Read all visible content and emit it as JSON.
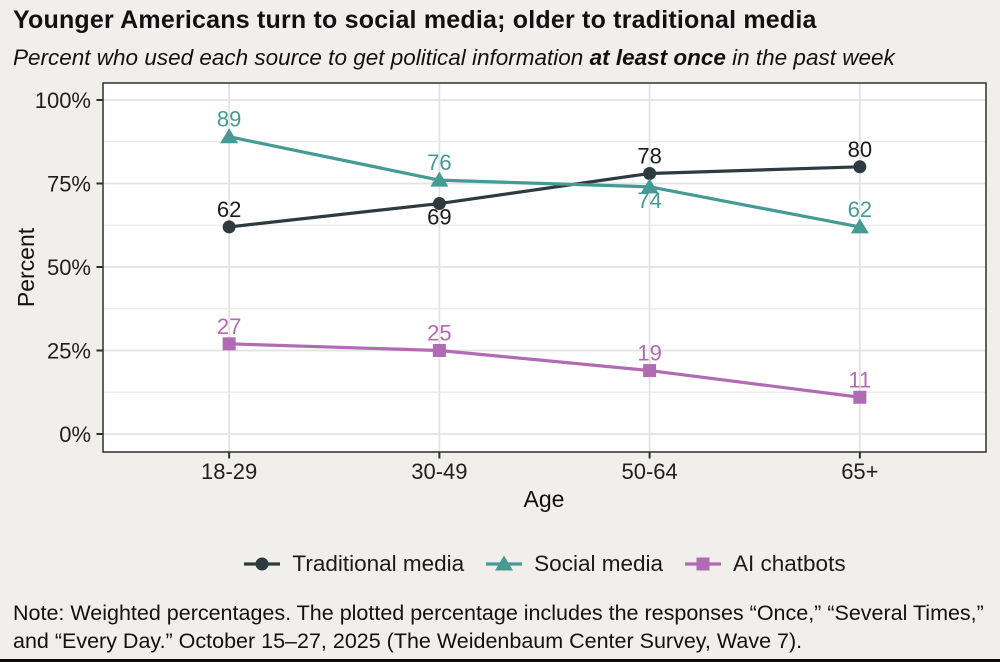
{
  "page": {
    "background": "#f0efeb"
  },
  "header": {
    "title": "Younger Americans turn to social media; older to traditional media",
    "subtitle_prefix": "Percent who used each source to get political information ",
    "subtitle_bold": "at least once",
    "subtitle_suffix": " in the past week"
  },
  "chart_data": {
    "type": "line",
    "title": "Younger Americans turn to social media; older to traditional media",
    "subtitle": "Percent who used each source to get political information at least once in the past week",
    "categories": [
      "18-29",
      "30-49",
      "50-64",
      "65+"
    ],
    "series": [
      {
        "name": "Traditional media",
        "marker": "circle",
        "color": "#2d3b41",
        "label_color": "#1a1a1a",
        "values": [
          62,
          69,
          78,
          80
        ],
        "label_side": [
          "above",
          "below",
          "above",
          "above"
        ]
      },
      {
        "name": "Social media",
        "marker": "triangle",
        "color": "#459a94",
        "label_color": "#459a94",
        "values": [
          89,
          76,
          74,
          62
        ],
        "label_side": [
          "above",
          "above",
          "below",
          "above"
        ]
      },
      {
        "name": "AI chatbots",
        "marker": "square",
        "color": "#b16bb4",
        "label_color": "#b16bb4",
        "values": [
          27,
          25,
          19,
          11
        ],
        "label_side": [
          "above",
          "above",
          "above",
          "above"
        ]
      }
    ],
    "xlabel": "Age",
    "ylabel": "Percent",
    "ylim": [
      0,
      100
    ],
    "yticks": [
      0,
      25,
      50,
      75,
      100
    ],
    "ytick_labels": [
      "0%",
      "25%",
      "50%",
      "75%",
      "100%"
    ],
    "yticks_minor": [
      12.5,
      37.5,
      62.5,
      87.5
    ],
    "grid": {
      "horizontal_major": true,
      "horizontal_minor": true,
      "vertical_at_categories": true
    },
    "legend_position": "bottom"
  },
  "note": "Note: Weighted percentages. The plotted percentage includes the responses “Once,” “Several Times,” and “Every Day.” October 15–27, 2025 (The Weidenbaum Center Survey, Wave 7)."
}
